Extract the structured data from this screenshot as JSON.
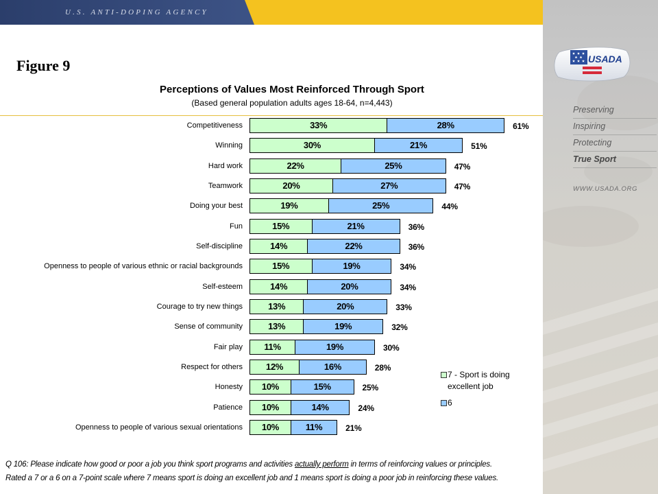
{
  "header": {
    "agency_name": "U.S. ANTI-DOPING AGENCY"
  },
  "figure_label": "Figure 9",
  "sidebar": {
    "logo_text": "USADA",
    "taglines": [
      "Preserving",
      "Inspiring",
      "Protecting",
      "True Sport"
    ],
    "url": "WWW.USADA.ORG"
  },
  "colors": {
    "header_navy": "#2B3E6B",
    "header_gold": "#F4C21F",
    "rule": "#E6BE3C"
  },
  "chart_data": {
    "type": "bar",
    "orientation": "horizontal",
    "stacked": true,
    "title": "Perceptions of Values Most Reinforced Through Sport",
    "subtitle": "(Based general population adults ages 18-64, n=4,443)",
    "unit": "%",
    "grid": false,
    "legend_position": "bottom-right",
    "categories": [
      "Competitiveness",
      "Winning",
      "Hard work",
      "Teamwork",
      "Doing your best",
      "Fun",
      "Self-discipline",
      "Openness to people of various ethnic or racial backgrounds",
      "Self-esteem",
      "Courage to try new things",
      "Sense of community",
      "Fair play",
      "Respect for others",
      "Honesty",
      "Patience",
      "Openness to people of various sexual orientations"
    ],
    "series": [
      {
        "name": "7 - Sport is doing excellent job",
        "color": "#CCFFCC",
        "values": [
          33,
          30,
          22,
          20,
          19,
          15,
          14,
          15,
          14,
          13,
          13,
          11,
          12,
          10,
          10,
          10
        ]
      },
      {
        "name": "6",
        "color": "#99CCFF",
        "values": [
          28,
          21,
          25,
          27,
          25,
          21,
          22,
          19,
          20,
          20,
          19,
          19,
          16,
          15,
          14,
          11
        ]
      }
    ],
    "totals": [
      61,
      51,
      47,
      47,
      44,
      36,
      36,
      34,
      34,
      33,
      32,
      30,
      28,
      25,
      24,
      21
    ]
  },
  "footnote": {
    "line1_before": "Q 106: Please indicate how good or poor a job you think sport programs and activities ",
    "line1_underlined": "actually perform",
    "line1_after": " in terms of reinforcing values or principles.",
    "line2": "Rated a 7 or a 6 on a 7-point scale where 7 means sport is doing an excellent job and 1 means sport is doing a poor job in reinforcing these values."
  }
}
